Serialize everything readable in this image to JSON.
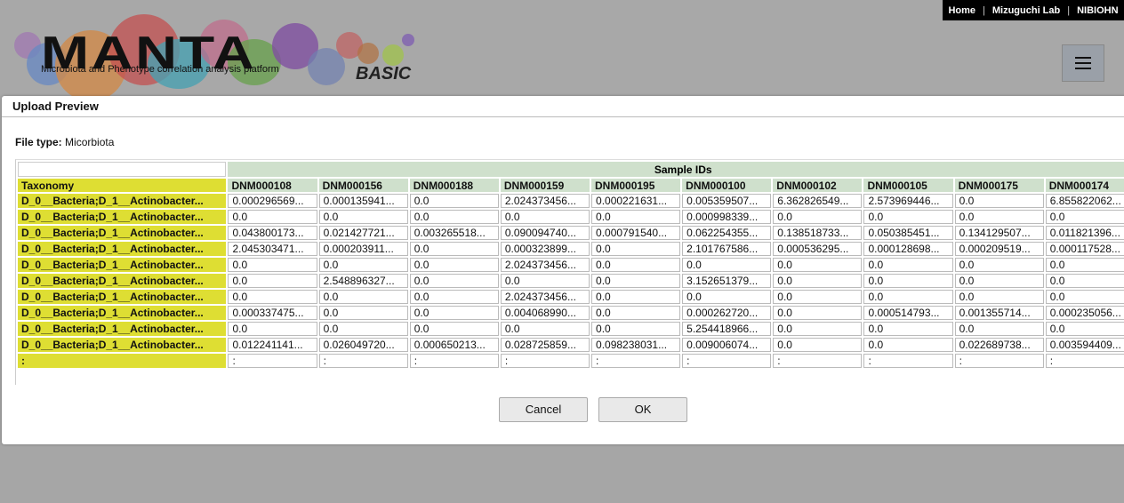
{
  "toplinks": [
    "Home",
    "Mizuguchi Lab",
    "NIBIOHN"
  ],
  "logo": {
    "title": "MANTA",
    "subtitle": "Microbiota and Phenotype correlation analysis platform",
    "edition": "BASIC"
  },
  "menu": {
    "icon": "hamburger-icon"
  },
  "dialog": {
    "title": "Upload Preview",
    "file_type_label": "File type:",
    "file_type_value": "Micorbiota",
    "sample_ids_header": "Sample IDs",
    "taxonomy_header": "Taxonomy",
    "columns": [
      "DNM000108",
      "DNM000156",
      "DNM000188",
      "DNM000159",
      "DNM000195",
      "DNM000100",
      "DNM000102",
      "DNM000105",
      "DNM000175",
      "DNM000174"
    ],
    "rows": [
      {
        "taxon": "D_0__Bacteria;D_1__Actinobacter...",
        "values": [
          "0.000296569...",
          "0.000135941...",
          "0.0",
          "2.024373456...",
          "0.000221631...",
          "0.005359507...",
          "6.362826549...",
          "2.573969446...",
          "0.0",
          "6.855822062..."
        ]
      },
      {
        "taxon": "D_0__Bacteria;D_1__Actinobacter...",
        "values": [
          "0.0",
          "0.0",
          "0.0",
          "0.0",
          "0.0",
          "0.000998339...",
          "0.0",
          "0.0",
          "0.0",
          "0.0"
        ]
      },
      {
        "taxon": "D_0__Bacteria;D_1__Actinobacter...",
        "values": [
          "0.043800173...",
          "0.021427721...",
          "0.003265518...",
          "0.090094740...",
          "0.000791540...",
          "0.062254355...",
          "0.138518733...",
          "0.050385451...",
          "0.134129507...",
          "0.011821396..."
        ]
      },
      {
        "taxon": "D_0__Bacteria;D_1__Actinobacter...",
        "values": [
          "2.045303471...",
          "0.000203911...",
          "0.0",
          "0.000323899...",
          "0.0",
          "2.101767586...",
          "0.000536295...",
          "0.000128698...",
          "0.000209519...",
          "0.000117528..."
        ]
      },
      {
        "taxon": "D_0__Bacteria;D_1__Actinobacter...",
        "values": [
          "0.0",
          "0.0",
          "0.0",
          "2.024373456...",
          "0.0",
          "0.0",
          "0.0",
          "0.0",
          "0.0",
          "0.0"
        ]
      },
      {
        "taxon": "D_0__Bacteria;D_1__Actinobacter...",
        "values": [
          "0.0",
          "2.548896327...",
          "0.0",
          "0.0",
          "0.0",
          "3.152651379...",
          "0.0",
          "0.0",
          "0.0",
          "0.0"
        ]
      },
      {
        "taxon": "D_0__Bacteria;D_1__Actinobacter...",
        "values": [
          "0.0",
          "0.0",
          "0.0",
          "2.024373456...",
          "0.0",
          "0.0",
          "0.0",
          "0.0",
          "0.0",
          "0.0"
        ]
      },
      {
        "taxon": "D_0__Bacteria;D_1__Actinobacter...",
        "values": [
          "0.000337475...",
          "0.0",
          "0.0",
          "0.004068990...",
          "0.0",
          "0.000262720...",
          "0.0",
          "0.000514793...",
          "0.001355714...",
          "0.000235056..."
        ]
      },
      {
        "taxon": "D_0__Bacteria;D_1__Actinobacter...",
        "values": [
          "0.0",
          "0.0",
          "0.0",
          "0.0",
          "0.0",
          "5.254418966...",
          "0.0",
          "0.0",
          "0.0",
          "0.0"
        ]
      },
      {
        "taxon": "D_0__Bacteria;D_1__Actinobacter...",
        "values": [
          "0.012241141...",
          "0.026049720...",
          "0.000650213...",
          "0.028725859...",
          "0.098238031...",
          "0.009006074...",
          "0.0",
          "0.0",
          "0.022689738...",
          "0.003594409..."
        ]
      }
    ],
    "ellipsis_row": {
      "taxon": ":",
      "value": ":"
    },
    "cancel_label": "Cancel",
    "ok_label": "OK"
  }
}
